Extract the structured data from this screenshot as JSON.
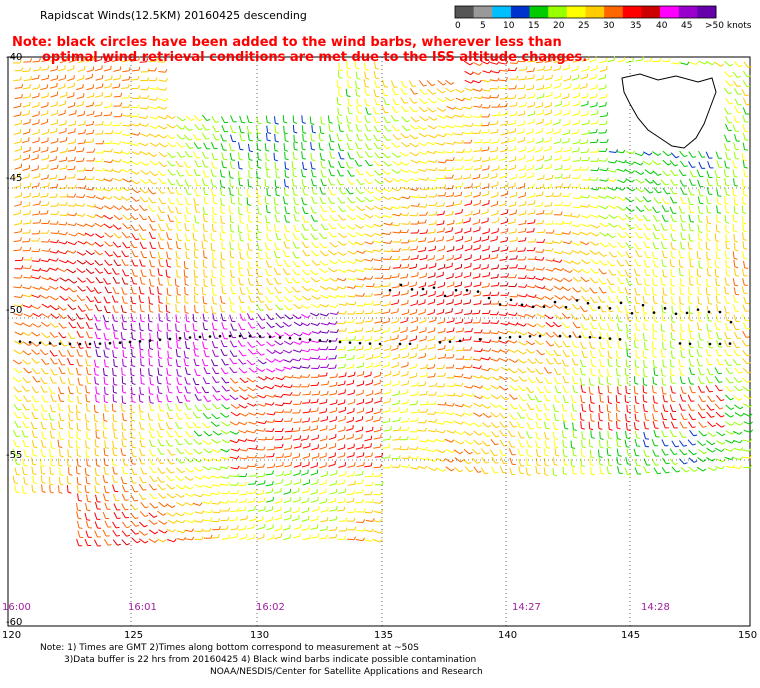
{
  "title": "Rapidscat Winds(12.5KM) 20160425 descending",
  "note_line1": "Note: black circles have been added to the wind barbs, wherever less than",
  "note_line2": "optimal wind retrieval conditions are met due to the ISS altitude changes.",
  "legend": {
    "labels": [
      "0",
      "5",
      "10",
      "15",
      "20",
      "25",
      "30",
      "35",
      "40",
      "45",
      ">50 knots"
    ],
    "colors": [
      "#555555",
      "#999999",
      "#00bfff",
      "#0033cc",
      "#00cc00",
      "#99ff00",
      "#ffff00",
      "#ffcc00",
      "#ff6600",
      "#ff0000",
      "#cc0000",
      "#ff00ff",
      "#9900cc",
      "#6600aa"
    ]
  },
  "lat_labels": [
    "-40",
    "-45",
    "-50",
    "-55",
    "-60"
  ],
  "lon_labels": [
    "120",
    "125",
    "130",
    "135",
    "140",
    "145",
    "150"
  ],
  "times": [
    "16:00",
    "16:01",
    "16:02",
    "14:27",
    "14:28"
  ],
  "footer_line1": "Note: 1) Times are GMT 2)Times along bottom correspond to measurement at ~50S",
  "footer_line2": "3)Data buffer is 22 hrs from 20160425 4) Black wind barbs indicate possible contamination",
  "credit": "NOAA/NESDIS/Center for Satellite Applications and Research"
}
